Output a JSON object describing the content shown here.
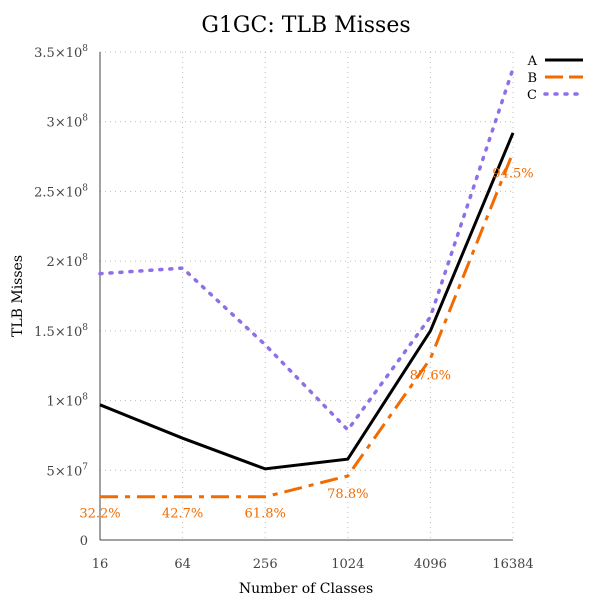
{
  "chart_data": {
    "type": "line",
    "title": "G1GC: TLB Misses",
    "xlabel": "Number of Classes",
    "ylabel": "TLB Misses",
    "x_scale": "log2",
    "x": [
      16,
      64,
      256,
      1024,
      4096,
      16384
    ],
    "x_tick_labels": [
      "16",
      "64",
      "256",
      "1024",
      "4096",
      "16384"
    ],
    "ylim": [
      0,
      350000000
    ],
    "y_tick_values": [
      0,
      50000000,
      100000000,
      150000000,
      200000000,
      250000000,
      300000000,
      350000000
    ],
    "y_tick_labels": [
      {
        "mantissa": "0",
        "exp": ""
      },
      {
        "mantissa": "5×10",
        "exp": "7"
      },
      {
        "mantissa": "1×10",
        "exp": "8"
      },
      {
        "mantissa": "1.5×10",
        "exp": "8"
      },
      {
        "mantissa": "2×10",
        "exp": "8"
      },
      {
        "mantissa": "2.5×10",
        "exp": "8"
      },
      {
        "mantissa": "3×10",
        "exp": "8"
      },
      {
        "mantissa": "3.5×10",
        "exp": "8"
      }
    ],
    "grid": true,
    "legend_position": "top-right",
    "series": [
      {
        "name": "A",
        "color": "#000000",
        "dash": "solid",
        "values": [
          97000000,
          73000000,
          51000000,
          58000000,
          150000000,
          292000000
        ]
      },
      {
        "name": "B",
        "color": "#f26b00",
        "dash": "dashdot",
        "values": [
          31000000,
          31000000,
          31000000,
          46000000,
          130000000,
          278000000
        ]
      },
      {
        "name": "C",
        "color": "#8f6fe8",
        "dash": "dotted",
        "values": [
          191000000,
          195000000,
          140000000,
          79000000,
          160000000,
          338000000
        ]
      }
    ],
    "annotations": [
      {
        "x": 16,
        "y": 19000000,
        "text": "32.2%"
      },
      {
        "x": 64,
        "y": 19000000,
        "text": "42.7%"
      },
      {
        "x": 256,
        "y": 19000000,
        "text": "61.8%"
      },
      {
        "x": 1024,
        "y": 33000000,
        "text": "78.8%"
      },
      {
        "x": 4096,
        "y": 118000000,
        "text": "87.6%"
      },
      {
        "x": 16384,
        "y": 263000000,
        "text": "94.5%"
      }
    ]
  }
}
